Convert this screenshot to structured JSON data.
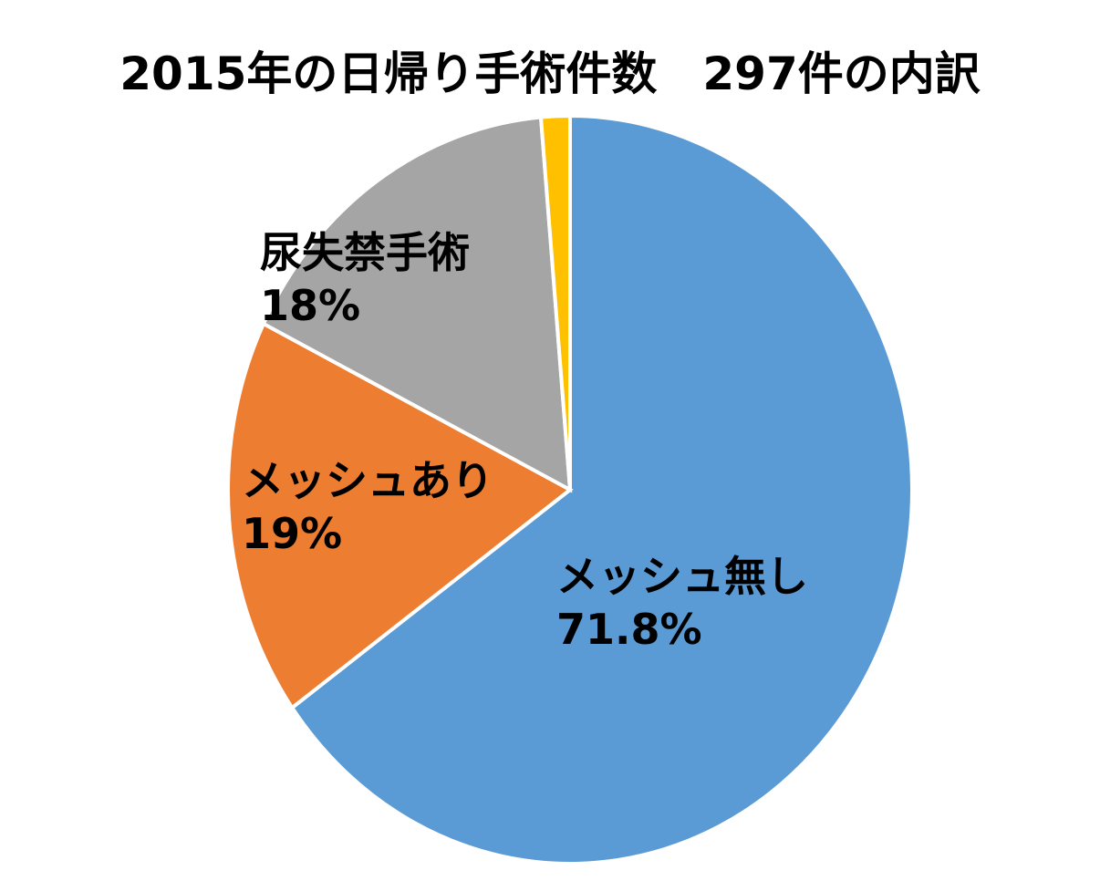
{
  "chart_data": {
    "type": "pie",
    "title": "2015年の日帰り手術件数　297件の内訳",
    "categories": [
      "メッシュ無し",
      "メッシュあり",
      "尿失禁手術",
      null
    ],
    "values": [
      71.8,
      19,
      18,
      1.5
    ],
    "value_labels": [
      "71.8%",
      "19%",
      "18%",
      null
    ],
    "colors": [
      "#5b9bd5",
      "#ed7d31",
      "#a5a5a5",
      "#ffc000"
    ]
  }
}
